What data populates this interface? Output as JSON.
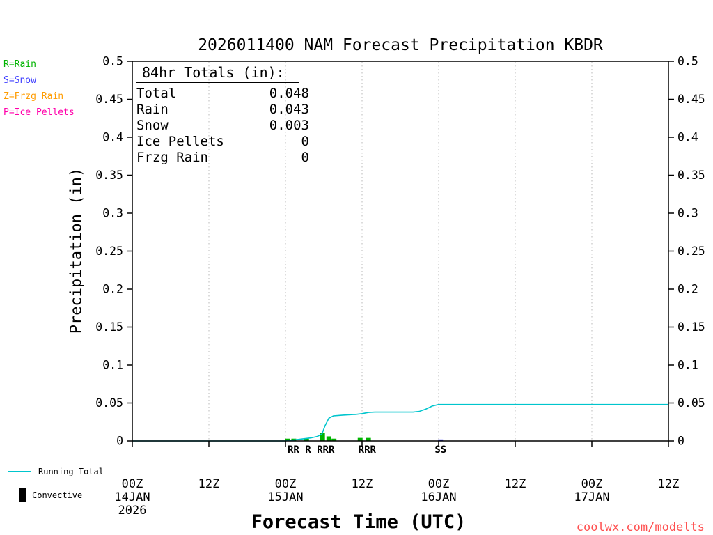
{
  "title": "2026011400 NAM Forecast Precipitation KBDR",
  "watermark": "coolwx.com/modelts",
  "type_legend": [
    {
      "label": "R=Rain",
      "color": "#00b400"
    },
    {
      "label": "S=Snow",
      "color": "#4040ff"
    },
    {
      "label": "Z=Frzg Rain",
      "color": "#ff9c00"
    },
    {
      "label": "P=Ice Pellets",
      "color": "#ff00aa"
    }
  ],
  "bottom_legend": {
    "running_total_label": "Running Total",
    "convective_label": "Convective"
  },
  "chart_data": {
    "type": "line",
    "title": "2026011400 NAM Forecast Precipitation KBDR",
    "xlabel": "Forecast Time (UTC)",
    "ylabel": "Precipitation (in)",
    "grid": "vertical-dotted",
    "legend_position": "bottom-left",
    "y_range": [
      0,
      0.5
    ],
    "y_ticks": [
      {
        "value": 0,
        "label": "0"
      },
      {
        "value": 0.05,
        "label": "0.05"
      },
      {
        "value": 0.1,
        "label": "0.1"
      },
      {
        "value": 0.15,
        "label": "0.15"
      },
      {
        "value": 0.2,
        "label": "0.2"
      },
      {
        "value": 0.25,
        "label": "0.25"
      },
      {
        "value": 0.3,
        "label": "0.3"
      },
      {
        "value": 0.35,
        "label": "0.35"
      },
      {
        "value": 0.4,
        "label": "0.4"
      },
      {
        "value": 0.45,
        "label": "0.45"
      },
      {
        "value": 0.5,
        "label": "0.5"
      }
    ],
    "x_range_hours": [
      0,
      84
    ],
    "x_ticks": [
      {
        "hour": 0,
        "label": "00Z",
        "date": "14JAN",
        "year": "2026"
      },
      {
        "hour": 12,
        "label": "12Z"
      },
      {
        "hour": 24,
        "label": "00Z",
        "date": "15JAN"
      },
      {
        "hour": 36,
        "label": "12Z"
      },
      {
        "hour": 48,
        "label": "00Z",
        "date": "16JAN"
      },
      {
        "hour": 60,
        "label": "12Z"
      },
      {
        "hour": 72,
        "label": "00Z",
        "date": "17JAN"
      },
      {
        "hour": 84,
        "label": "12Z"
      }
    ],
    "totals_heading": "84hr Totals (in):",
    "totals": [
      {
        "label": "Total",
        "value": "0.048"
      },
      {
        "label": "Rain",
        "value": "0.043"
      },
      {
        "label": "Snow",
        "value": "0.003"
      },
      {
        "label": "Ice Pellets",
        "value": "0"
      },
      {
        "label": "Frzg Rain",
        "value": "0"
      }
    ],
    "series": [
      {
        "name": "Running Total",
        "color": "#00c5cd",
        "points": [
          [
            0,
            0
          ],
          [
            6,
            0
          ],
          [
            12,
            0
          ],
          [
            18,
            0
          ],
          [
            24,
            0
          ],
          [
            25,
            0.001
          ],
          [
            26,
            0.002
          ],
          [
            27,
            0.003
          ],
          [
            28,
            0.004
          ],
          [
            29,
            0.006
          ],
          [
            29.7,
            0.009
          ],
          [
            30.2,
            0.02
          ],
          [
            30.8,
            0.03
          ],
          [
            31.5,
            0.033
          ],
          [
            33,
            0.034
          ],
          [
            35,
            0.035
          ],
          [
            36,
            0.036
          ],
          [
            37,
            0.0375
          ],
          [
            38,
            0.038
          ],
          [
            44,
            0.038
          ],
          [
            45,
            0.039
          ],
          [
            46,
            0.042
          ],
          [
            47,
            0.046
          ],
          [
            48,
            0.048
          ],
          [
            60,
            0.048
          ],
          [
            72,
            0.048
          ],
          [
            84,
            0.048
          ]
        ]
      }
    ],
    "bars": [
      {
        "hour": 24.3,
        "value": 0.003,
        "type": "rain"
      },
      {
        "hour": 25.3,
        "value": 0.003,
        "type": "rain"
      },
      {
        "hour": 27.3,
        "value": 0.003,
        "type": "rain"
      },
      {
        "hour": 29.8,
        "value": 0.011,
        "type": "rain"
      },
      {
        "hour": 30.8,
        "value": 0.006,
        "type": "rain"
      },
      {
        "hour": 31.6,
        "value": 0.003,
        "type": "rain"
      },
      {
        "hour": 35.7,
        "value": 0.004,
        "type": "rain"
      },
      {
        "hour": 37.0,
        "value": 0.004,
        "type": "rain"
      },
      {
        "hour": 48.3,
        "value": 0.002,
        "type": "snow"
      }
    ],
    "type_markers": [
      {
        "text": "RR R RRR",
        "hour": 28.0,
        "type": "rain"
      },
      {
        "text": "RRR",
        "hour": 36.8,
        "type": "rain"
      },
      {
        "text": "SS",
        "hour": 48.3,
        "type": "snow"
      }
    ],
    "colors": {
      "rain": "#00b400",
      "snow": "#4040ff",
      "frzg_rain": "#ff9c00",
      "ice_pellets": "#ff00aa",
      "running": "#00c5cd",
      "convective": "#000000",
      "grid": "#b8b8b8",
      "axis": "#000000",
      "watermark": "#ff5050"
    }
  }
}
